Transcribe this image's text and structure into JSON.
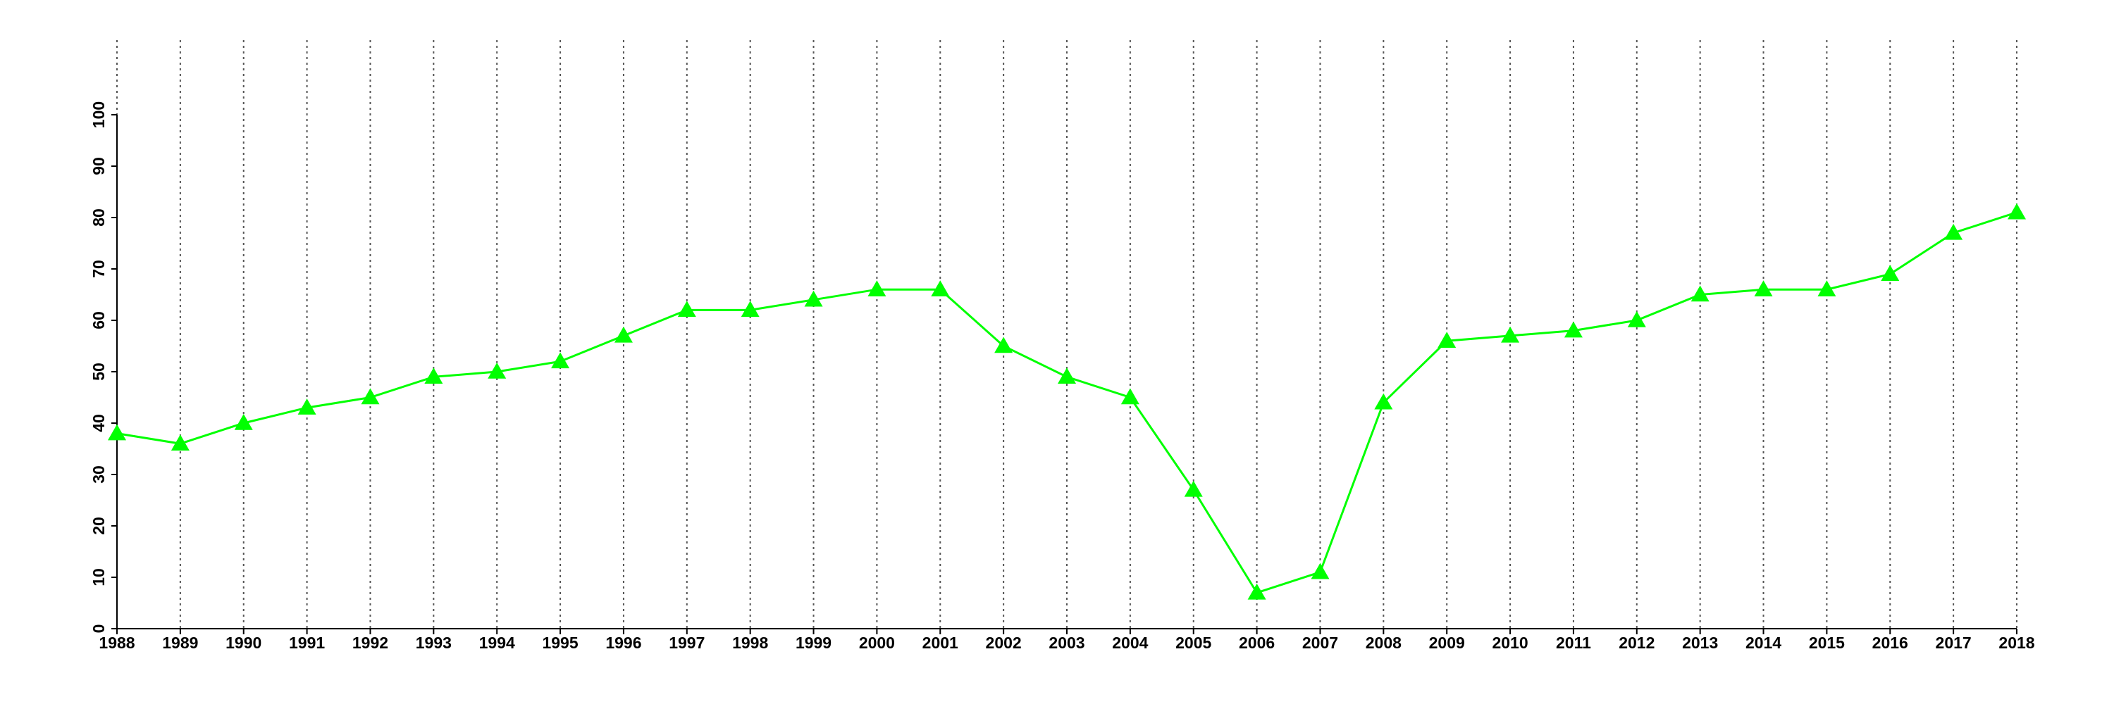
{
  "chart_data": {
    "type": "line",
    "x": [
      1988,
      1989,
      1990,
      1991,
      1992,
      1993,
      1994,
      1995,
      1996,
      1997,
      1998,
      1999,
      2000,
      2001,
      2002,
      2003,
      2004,
      2005,
      2006,
      2007,
      2008,
      2009,
      2010,
      2011,
      2012,
      2013,
      2014,
      2015,
      2016,
      2017,
      2018
    ],
    "values": [
      38,
      36,
      40,
      43,
      45,
      49,
      50,
      52,
      57,
      62,
      62,
      64,
      66,
      66,
      55,
      49,
      45,
      27,
      7,
      11,
      44,
      56,
      57,
      58,
      60,
      65,
      66,
      66,
      69,
      77,
      81
    ],
    "color": "#00ff00",
    "marker": "triangle",
    "xlim": [
      1988,
      2018
    ],
    "xticks": [
      1988,
      1989,
      1990,
      1991,
      1992,
      1993,
      1994,
      1995,
      1996,
      1997,
      1998,
      1999,
      2000,
      2001,
      2002,
      2003,
      2004,
      2005,
      2006,
      2007,
      2008,
      2009,
      2010,
      2011,
      2012,
      2013,
      2014,
      2015,
      2016,
      2017,
      2018
    ],
    "ylim": [
      0,
      100
    ],
    "yticks": [
      0,
      10,
      20,
      30,
      40,
      50,
      60,
      70,
      80,
      90,
      100
    ],
    "grid": true
  }
}
